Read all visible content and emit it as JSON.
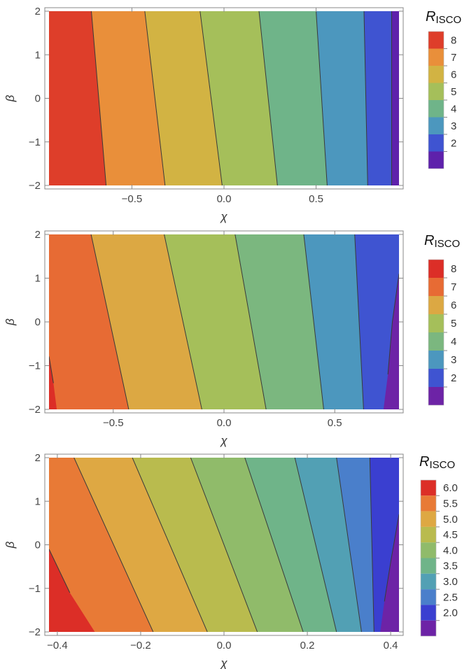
{
  "chart_data": [
    {
      "type": "contour",
      "xlabel": "χ",
      "ylabel": "β",
      "xlim": [
        -0.95,
        0.95
      ],
      "ylim": [
        -2,
        2
      ],
      "xticks": [
        -0.5,
        0.0,
        0.5
      ],
      "xtick_labels": [
        "−0.5",
        "0.0",
        "0.5"
      ],
      "yticks": [
        -2,
        -1,
        0,
        1,
        2
      ],
      "ytick_labels": [
        "−2",
        "−1",
        "0",
        "1",
        "2"
      ],
      "legend": {
        "title": "R",
        "title_sub": "ISCO",
        "placement": "right",
        "labels": [
          "8",
          "7",
          "6",
          "5",
          "4",
          "3",
          "2"
        ]
      },
      "contours": [
        {
          "level": 8,
          "x_at_top": -0.72,
          "x_at_bottom": -0.64
        },
        {
          "level": 7,
          "x_at_top": -0.43,
          "x_at_bottom": -0.32
        },
        {
          "level": 6,
          "x_at_top": -0.13,
          "x_at_bottom": -0.01
        },
        {
          "level": 5,
          "x_at_top": 0.19,
          "x_at_bottom": 0.29
        },
        {
          "level": 4,
          "x_at_top": 0.5,
          "x_at_bottom": 0.56
        },
        {
          "level": 3,
          "x_at_top": 0.76,
          "x_at_bottom": 0.78
        },
        {
          "level": 2,
          "x_at_top": 0.91,
          "x_at_bottom": 0.91
        }
      ],
      "fill_colors": [
        "#de3e2a",
        "#e98f3a",
        "#d2b343",
        "#a5bf5a",
        "#6fb489",
        "#4c97be",
        "#3f54d1",
        "#5e21ab"
      ]
    },
    {
      "type": "contour",
      "xlabel": "χ",
      "ylabel": "β",
      "xlim": [
        -0.79,
        0.79
      ],
      "ylim": [
        -2,
        2
      ],
      "xticks": [
        -0.5,
        0.0,
        0.5
      ],
      "xtick_labels": [
        "−0.5",
        "0.0",
        "0.5"
      ],
      "yticks": [
        -2,
        -1,
        0,
        1,
        2
      ],
      "ytick_labels": [
        "−2",
        "−1",
        "0",
        "1",
        "2"
      ],
      "legend": {
        "title": "R",
        "title_sub": "ISCO",
        "placement": "right",
        "labels": [
          "8",
          "7",
          "6",
          "5",
          "4",
          "3",
          "2"
        ]
      },
      "contours": [
        {
          "level": 7,
          "x_at_top": -0.6,
          "x_at_bottom": -0.43
        },
        {
          "level": 6,
          "x_at_top": -0.27,
          "x_at_bottom": -0.1
        },
        {
          "level": 5,
          "x_at_top": 0.05,
          "x_at_bottom": 0.19
        },
        {
          "level": 4,
          "x_at_top": 0.36,
          "x_at_bottom": 0.45
        },
        {
          "level": 3,
          "x_at_top": 0.59,
          "x_at_bottom": 0.63
        }
      ],
      "corner_regions": [
        {
          "level": 8,
          "corner": "bottom-left"
        },
        {
          "level": 2,
          "corner": "bottom-right"
        }
      ],
      "fill_colors": [
        "#dc2e27",
        "#e76b34",
        "#dca843",
        "#a5bf5a",
        "#7bb77f",
        "#4c97be",
        "#3f54d1",
        "#6d23a6"
      ]
    },
    {
      "type": "contour",
      "xlabel": "χ",
      "ylabel": "β",
      "xlim": [
        -0.42,
        0.42
      ],
      "ylim": [
        -2,
        2
      ],
      "xticks": [
        -0.4,
        -0.2,
        0.0,
        0.2,
        0.4
      ],
      "xtick_labels": [
        "−0.4",
        "−0.2",
        "0.0",
        "0.2",
        "0.4"
      ],
      "yticks": [
        -2,
        -1,
        0,
        1,
        2
      ],
      "ytick_labels": [
        "−2",
        "−1",
        "0",
        "1",
        "2"
      ],
      "legend": {
        "title": "R",
        "title_sub": "ISCO",
        "placement": "right",
        "labels": [
          "6.0",
          "5.5",
          "5.0",
          "4.5",
          "4.0",
          "3.5",
          "3.0",
          "2.5",
          "2.0"
        ]
      },
      "contours": [
        {
          "level": 5.5,
          "x_at_top": -0.36,
          "x_at_bottom": -0.17
        },
        {
          "level": 5.0,
          "x_at_top": -0.22,
          "x_at_bottom": -0.04
        },
        {
          "level": 4.5,
          "x_at_top": -0.08,
          "x_at_bottom": 0.08
        },
        {
          "level": 4.0,
          "x_at_top": 0.05,
          "x_at_bottom": 0.19
        },
        {
          "level": 3.5,
          "x_at_top": 0.17,
          "x_at_bottom": 0.27
        },
        {
          "level": 3.0,
          "x_at_top": 0.27,
          "x_at_bottom": 0.33
        },
        {
          "level": 2.5,
          "x_at_top": 0.35,
          "x_at_bottom": 0.36
        }
      ],
      "corner_regions": [
        {
          "level": 6.0,
          "corner": "bottom-left"
        },
        {
          "level": 2.0,
          "corner": "bottom-right"
        }
      ],
      "fill_colors": [
        "#dc2e27",
        "#e87a36",
        "#dea843",
        "#b9bb4e",
        "#90bb6a",
        "#6fb489",
        "#52a0b4",
        "#4a7fcb",
        "#3a3fd0",
        "#6d23a6"
      ]
    }
  ]
}
